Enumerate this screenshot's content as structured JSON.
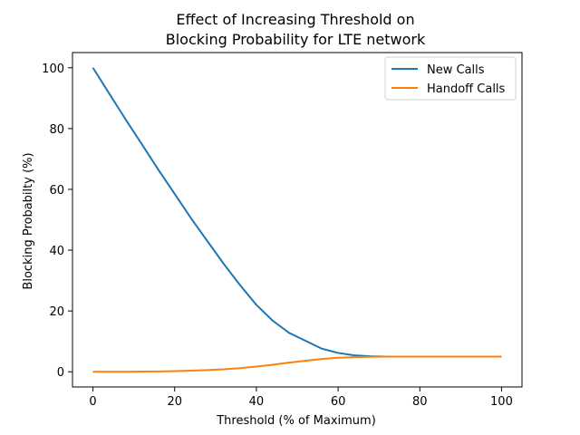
{
  "chart_data": {
    "type": "line",
    "title": [
      "Effect of Increasing Threshold on",
      "Blocking Probability for LTE network"
    ],
    "xlabel": "Threshold (% of Maximum)",
    "ylabel": "Blocking Probabilty (%)",
    "xlim": [
      -5,
      105
    ],
    "ylim": [
      -5,
      105
    ],
    "xticks": [
      0,
      20,
      40,
      60,
      80,
      100
    ],
    "yticks": [
      0,
      20,
      40,
      60,
      80,
      100
    ],
    "grid": false,
    "legend_position": "top-right",
    "series": [
      {
        "name": "New Calls",
        "color": "#1f77b4",
        "x": [
          0,
          4,
          8,
          12,
          16,
          20,
          24,
          28,
          32,
          36,
          40,
          44,
          48,
          52,
          56,
          60,
          64,
          68,
          72,
          76,
          80,
          84,
          88,
          92,
          96,
          100
        ],
        "y": [
          100,
          91.5,
          83,
          74.8,
          66.5,
          58.5,
          50.5,
          43,
          35.5,
          28.5,
          22,
          16.8,
          12.8,
          10.2,
          7.6,
          6.2,
          5.4,
          5.1,
          5.0,
          5.0,
          5.0,
          5.0,
          5.0,
          5.0,
          5.0,
          5.0
        ]
      },
      {
        "name": "Handoff Calls",
        "color": "#ff7f0e",
        "x": [
          0,
          4,
          8,
          12,
          16,
          20,
          24,
          28,
          32,
          36,
          40,
          44,
          48,
          52,
          56,
          60,
          64,
          68,
          72,
          76,
          80,
          84,
          88,
          92,
          96,
          100
        ],
        "y": [
          0,
          0,
          0,
          0.05,
          0.1,
          0.2,
          0.35,
          0.55,
          0.8,
          1.2,
          1.7,
          2.3,
          3.0,
          3.6,
          4.2,
          4.6,
          4.8,
          4.9,
          5.0,
          5.0,
          5.0,
          5.0,
          5.0,
          5.0,
          5.0,
          5.0
        ]
      }
    ]
  }
}
